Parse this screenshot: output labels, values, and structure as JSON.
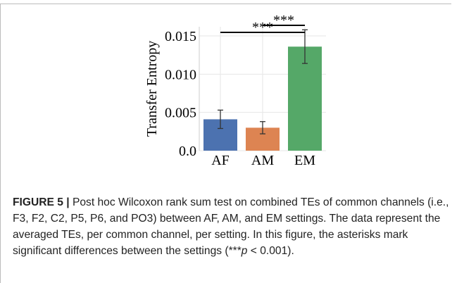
{
  "chart_data": {
    "type": "bar",
    "ylabel": "Transfer Entropy",
    "categories": [
      "AF",
      "AM",
      "EM"
    ],
    "values": [
      0.0041,
      0.003,
      0.0136
    ],
    "errors": [
      0.0012,
      0.0008,
      0.0022
    ],
    "colors": [
      "#4c72b0",
      "#dd8452",
      "#55a868"
    ],
    "ylim": [
      0,
      0.0162
    ],
    "yticks": [
      {
        "value": 0,
        "label": "0.0"
      },
      0.005,
      {
        "value": 0.01,
        "label": "0.010"
      },
      0.015
    ],
    "grid": true,
    "annotations": [
      "***",
      "***"
    ]
  },
  "caption": {
    "label": "FIGURE 5 |",
    "text_parts": [
      "Post hoc Wilcoxon rank sum test on combined TEs of common channels (i.e., F3, F2, C2, P5, P6, and PO3) between AF, AM, and EM settings. The data represent the averaged TEs, per common channel, per setting. In this figure, the asterisks mark significant differences between the settings (***",
      "p",
      " < 0.001)."
    ]
  }
}
